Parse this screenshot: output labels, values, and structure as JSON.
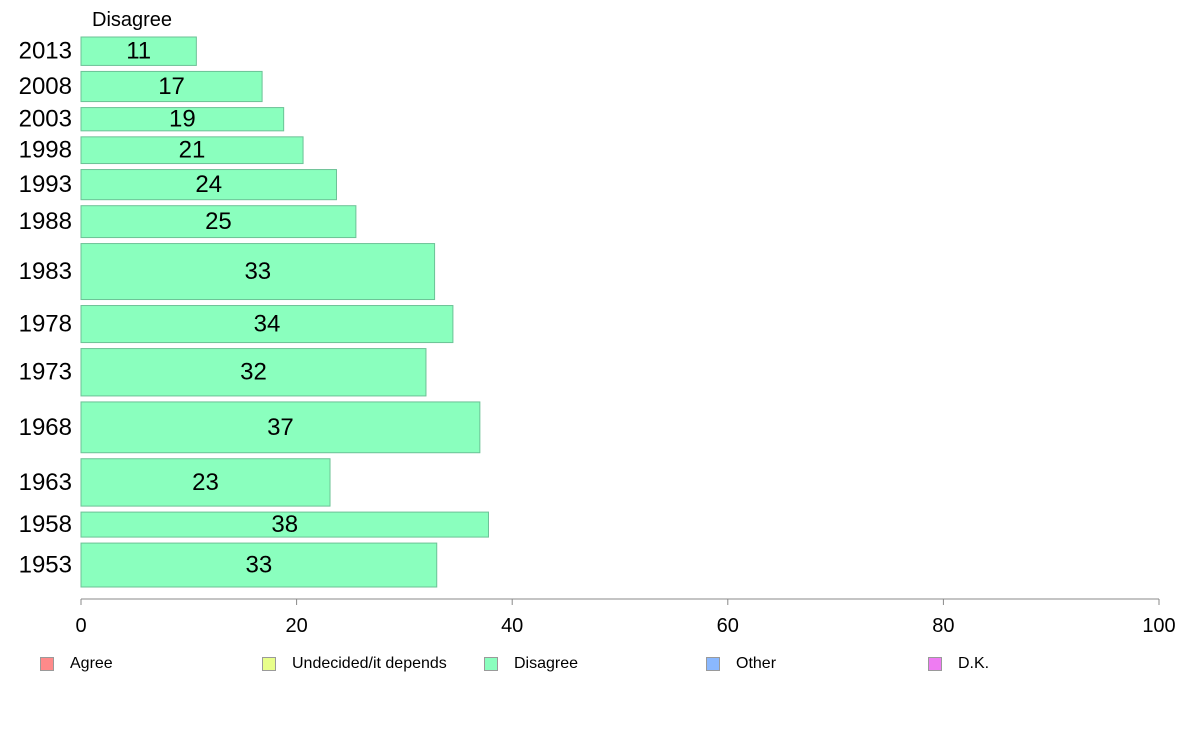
{
  "chart_data": {
    "type": "bar",
    "orientation": "horizontal",
    "panel_title": "Disagree",
    "categories": [
      "2013",
      "2008",
      "2003",
      "1998",
      "1993",
      "1988",
      "1983",
      "1978",
      "1973",
      "1968",
      "1963",
      "1958",
      "1953"
    ],
    "values": [
      11,
      17,
      19,
      21,
      24,
      25,
      33,
      34,
      32,
      37,
      23,
      38,
      33
    ],
    "plotted_values": [
      10.7,
      16.8,
      18.8,
      20.6,
      23.7,
      25.5,
      32.8,
      34.5,
      32.0,
      37.0,
      23.1,
      37.8,
      33.0
    ],
    "row_weights": [
      1.0,
      1.05,
      0.85,
      0.95,
      1.05,
      1.1,
      1.8,
      1.25,
      1.55,
      1.65,
      1.55,
      0.9,
      1.45
    ],
    "bar_color": "#8affbe",
    "bar_border_color": "#6cc296",
    "x_axis": {
      "ticks": [
        0,
        20,
        40,
        60,
        80,
        100
      ],
      "xlim": [
        0,
        100
      ],
      "xlabel": ""
    },
    "grid": false,
    "legend": {
      "placement": "bottom",
      "items": [
        {
          "label": "Agree",
          "color": "#ff8a8a"
        },
        {
          "label": "Undecided/it depends",
          "color": "#e8ff8a"
        },
        {
          "label": "Disagree",
          "color": "#8affbe"
        },
        {
          "label": "Other",
          "color": "#8ab8ff"
        },
        {
          "label": "D.K.",
          "color": "#ee7cf2"
        }
      ]
    }
  }
}
